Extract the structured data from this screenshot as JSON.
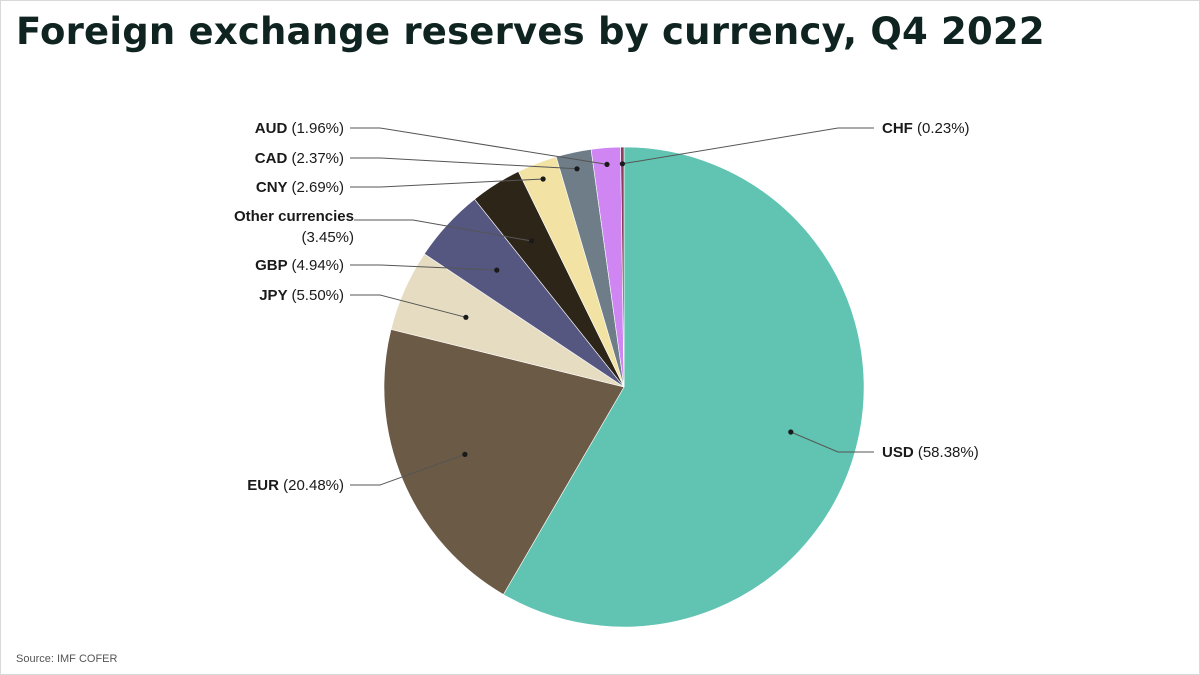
{
  "title": "Foreign exchange reserves by currency, Q4 2022",
  "source": "Source: IMF COFER",
  "chart_data": {
    "type": "pie",
    "title": "Foreign exchange reserves by currency, Q4 2022",
    "slices": [
      {
        "name": "USD",
        "value": 58.38,
        "pct_label": "(58.38%)",
        "color": "#61c4b2"
      },
      {
        "name": "EUR",
        "value": 20.48,
        "pct_label": "(20.48%)",
        "color": "#6b5a45"
      },
      {
        "name": "JPY",
        "value": 5.5,
        "pct_label": "(5.50%)",
        "color": "#e6dcc1"
      },
      {
        "name": "GBP",
        "value": 4.94,
        "pct_label": "(4.94%)",
        "color": "#555780"
      },
      {
        "name": "Other currencies",
        "value": 3.45,
        "pct_label": "(3.45%)",
        "color": "#2e2519"
      },
      {
        "name": "CNY",
        "value": 2.69,
        "pct_label": "(2.69%)",
        "color": "#f2e3a5"
      },
      {
        "name": "CAD",
        "value": 2.37,
        "pct_label": "(2.37%)",
        "color": "#6e7d88"
      },
      {
        "name": "AUD",
        "value": 1.96,
        "pct_label": "(1.96%)",
        "color": "#cf86f2"
      },
      {
        "name": "CHF",
        "value": 0.23,
        "pct_label": "(0.23%)",
        "color": "#8a3d5c"
      }
    ]
  }
}
